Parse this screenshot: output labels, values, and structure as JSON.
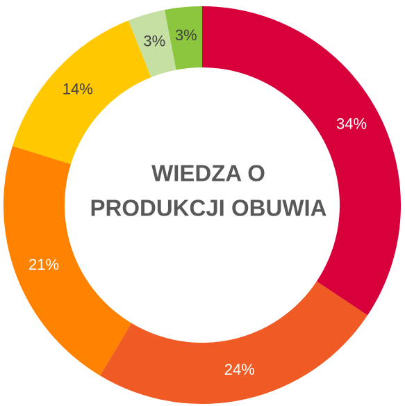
{
  "chart_data": {
    "type": "donut",
    "title": [
      "WIEDZA O",
      "PRODUKCJI OBUWIA"
    ],
    "values": [
      34,
      24,
      21,
      14,
      3,
      3
    ],
    "value_labels": [
      "34%",
      "24%",
      "21%",
      "14%",
      "3%",
      "3%"
    ],
    "colors": [
      "#d7003a",
      "#f05a24",
      "#ff8200",
      "#ffc800",
      "#c6e0a4",
      "#8cc63f"
    ],
    "label_colors": [
      "#ffffff",
      "#ffffff",
      "#ffffff",
      "#404040",
      "#404040",
      "#404040"
    ]
  }
}
